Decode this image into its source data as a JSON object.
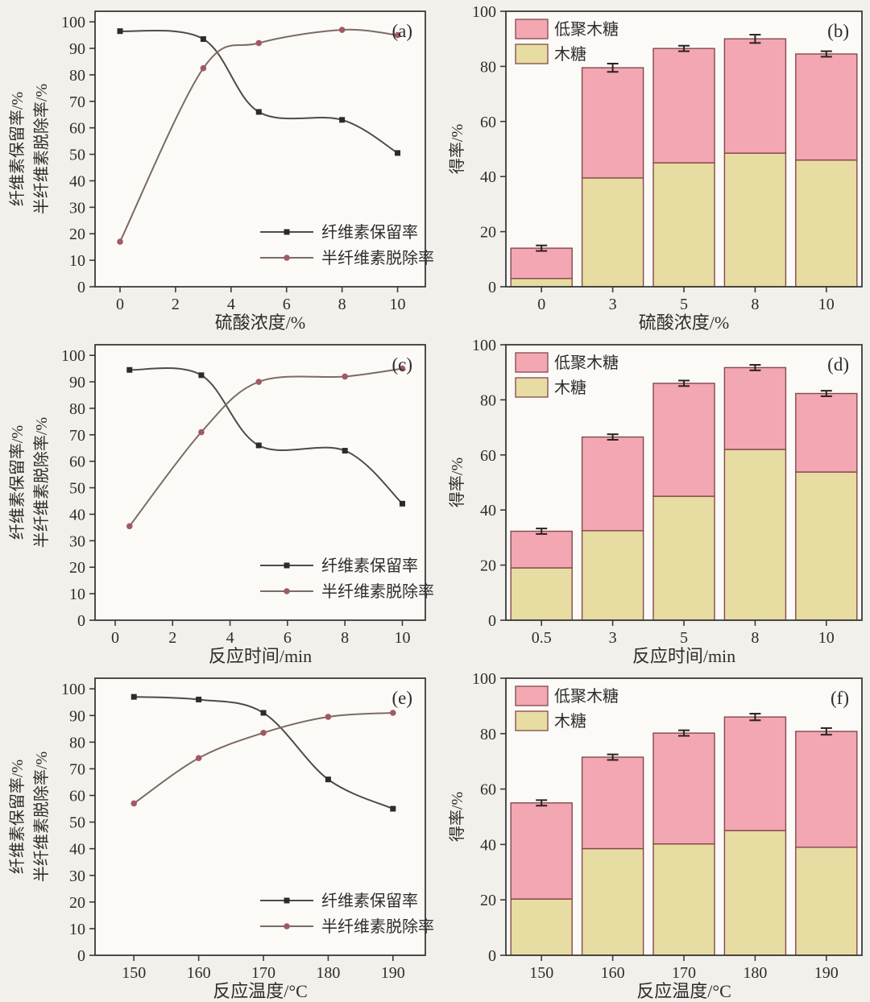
{
  "figure": {
    "page_bg": "#f2f0eb",
    "plot_bg": "#fbfaf7",
    "colors": {
      "axis": "#3c3a38",
      "text": "#2f2d2b",
      "error_bar": "#2a2222",
      "bar_edge": "#84494b"
    },
    "line_series_styles": [
      {
        "line": "#4e4a48",
        "marker": "#2d2a29",
        "marker_shape": "square"
      },
      {
        "line": "#7d6a66",
        "marker": "#a05a63",
        "marker_shape": "circle"
      }
    ],
    "bar_series_styles": [
      {
        "fill": "#e7dca2"
      },
      {
        "fill": "#f2a7b2"
      }
    ]
  },
  "chart_data": [
    {
      "id": "a",
      "type": "line",
      "panel_label": "(a)",
      "xlabel": "硫酸浓度/%",
      "ylabel_lines": [
        "纤维素保留率/%",
        "半纤维素脱除率/%"
      ],
      "xlim": [
        -0.9,
        11.0
      ],
      "ylim": [
        0,
        104
      ],
      "xticks": [
        0,
        2,
        4,
        6,
        8,
        10
      ],
      "yticks": [
        0,
        10,
        20,
        30,
        40,
        50,
        60,
        70,
        80,
        90,
        100
      ],
      "legend_position": "bottom-right",
      "series": [
        {
          "name": "纤维素保留率",
          "x": [
            0,
            3,
            5,
            8,
            10
          ],
          "y": [
            96.5,
            93.5,
            66,
            63,
            50.5
          ]
        },
        {
          "name": "半纤维素脱除率",
          "x": [
            0,
            3,
            5,
            8,
            10
          ],
          "y": [
            17,
            82.5,
            92,
            97,
            95
          ]
        }
      ]
    },
    {
      "id": "b",
      "type": "stacked_bar",
      "panel_label": "(b)",
      "xlabel": "硫酸浓度/%",
      "ylabel": "得率/%",
      "categories": [
        "0",
        "3",
        "5",
        "8",
        "10"
      ],
      "ylim": [
        0,
        100
      ],
      "yticks": [
        0,
        20,
        40,
        60,
        80,
        100
      ],
      "legend_position": "top-left",
      "series": [
        {
          "name": "木糖",
          "values": [
            3,
            39.5,
            45,
            48.5,
            46
          ]
        },
        {
          "name": "低聚木糖",
          "values": [
            11,
            40,
            41.5,
            41.5,
            38.5
          ]
        }
      ],
      "totals": [
        14,
        79.5,
        86.5,
        90,
        84.5
      ],
      "errors": [
        1,
        1.5,
        1,
        1.5,
        1
      ]
    },
    {
      "id": "c",
      "type": "line",
      "panel_label": "(c)",
      "xlabel": "反应时间/min",
      "ylabel_lines": [
        "纤维素保留率/%",
        "半纤维素脱除率/%"
      ],
      "xlim": [
        -0.7,
        10.8
      ],
      "ylim": [
        0,
        104
      ],
      "xticks": [
        0,
        2,
        4,
        6,
        8,
        10
      ],
      "yticks": [
        0,
        10,
        20,
        30,
        40,
        50,
        60,
        70,
        80,
        90,
        100
      ],
      "legend_position": "bottom-right",
      "series": [
        {
          "name": "纤维素保留率",
          "x": [
            0.5,
            3,
            5,
            8,
            10
          ],
          "y": [
            94.5,
            92.5,
            66,
            64,
            44
          ]
        },
        {
          "name": "半纤维素脱除率",
          "x": [
            0.5,
            3,
            5,
            8,
            10
          ],
          "y": [
            35.5,
            71,
            90,
            92,
            95
          ]
        }
      ]
    },
    {
      "id": "d",
      "type": "stacked_bar",
      "panel_label": "(d)",
      "xlabel": "反应时间/min",
      "ylabel": "得率/%",
      "categories": [
        "0.5",
        "3",
        "5",
        "8",
        "10"
      ],
      "ylim": [
        0,
        100
      ],
      "yticks": [
        0,
        20,
        40,
        60,
        80,
        100
      ],
      "legend_position": "top-left",
      "series": [
        {
          "name": "木糖",
          "values": [
            19,
            32.5,
            45,
            62,
            53.8
          ]
        },
        {
          "name": "低聚木糖",
          "values": [
            13.3,
            34,
            41,
            29.7,
            28.5
          ]
        }
      ],
      "totals": [
        32.3,
        66.5,
        86,
        91.7,
        82.3
      ],
      "errors": [
        1,
        1,
        1,
        1,
        1
      ]
    },
    {
      "id": "e",
      "type": "line",
      "panel_label": "(e)",
      "xlabel": "反应温度/°C",
      "ylabel_lines": [
        "纤维素保留率/%",
        "半纤维素脱除率/%"
      ],
      "xlim": [
        144,
        195
      ],
      "ylim": [
        0,
        104
      ],
      "xticks": [
        150,
        160,
        170,
        180,
        190
      ],
      "yticks": [
        0,
        10,
        20,
        30,
        40,
        50,
        60,
        70,
        80,
        90,
        100
      ],
      "legend_position": "bottom-right",
      "series": [
        {
          "name": "纤维素保留率",
          "x": [
            150,
            160,
            170,
            180,
            190
          ],
          "y": [
            97,
            96,
            91,
            66,
            55
          ]
        },
        {
          "name": "半纤维素脱除率",
          "x": [
            150,
            160,
            170,
            180,
            190
          ],
          "y": [
            57,
            74,
            83.5,
            89.5,
            91
          ]
        }
      ]
    },
    {
      "id": "f",
      "type": "stacked_bar",
      "panel_label": "(f)",
      "xlabel": "反应温度/°C",
      "ylabel": "得率/%",
      "categories": [
        "150",
        "160",
        "170",
        "180",
        "190"
      ],
      "ylim": [
        0,
        100
      ],
      "yticks": [
        0,
        20,
        40,
        60,
        80,
        100
      ],
      "legend_position": "top-left",
      "series": [
        {
          "name": "木糖",
          "values": [
            20.3,
            38.5,
            40.2,
            45,
            39
          ]
        },
        {
          "name": "低聚木糖",
          "values": [
            34.7,
            33,
            40,
            41,
            41.8
          ]
        }
      ],
      "totals": [
        55,
        71.5,
        80.2,
        86,
        80.8
      ],
      "errors": [
        1,
        1,
        1,
        1.2,
        1.2
      ]
    }
  ]
}
